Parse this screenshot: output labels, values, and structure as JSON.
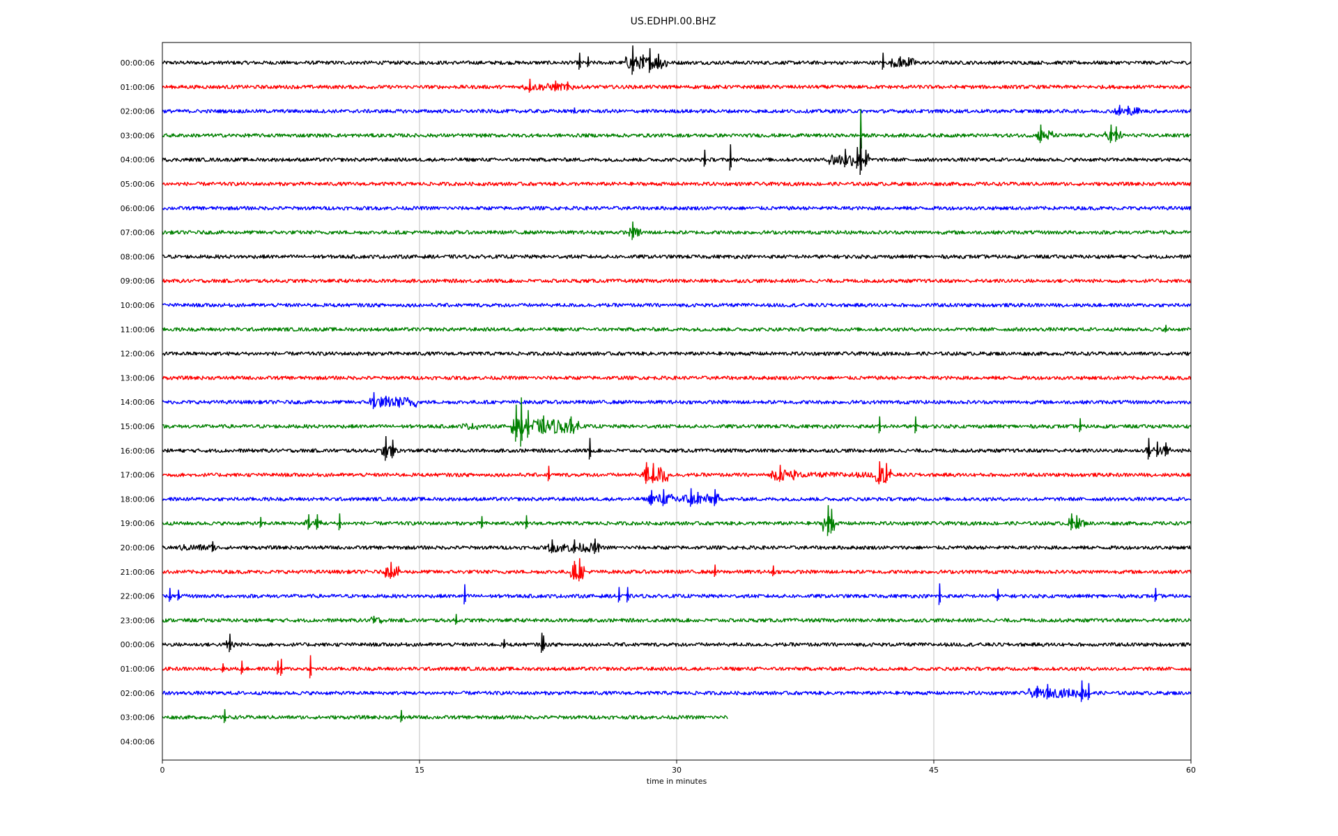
{
  "chart_data": {
    "type": "line",
    "title": "US.EDHPI.00.BHZ",
    "xlabel": "time in minutes",
    "ylabel": "",
    "xlim": [
      0,
      60
    ],
    "x_ticks": [
      0,
      15,
      30,
      45,
      60
    ],
    "x_tick_labels": [
      "0",
      "15",
      "30",
      "45",
      "60"
    ],
    "grid": "vertical lines at x ticks",
    "color_cycle": [
      "#000000",
      "#ff0000",
      "#0000ff",
      "#008000"
    ],
    "row_labels": [
      "00:00:06",
      "01:00:06",
      "02:00:06",
      "03:00:06",
      "04:00:06",
      "05:00:06",
      "06:00:06",
      "07:00:06",
      "08:00:06",
      "09:00:06",
      "10:00:06",
      "11:00:06",
      "12:00:06",
      "13:00:06",
      "14:00:06",
      "15:00:06",
      "16:00:06",
      "17:00:06",
      "18:00:06",
      "19:00:06",
      "20:00:06",
      "21:00:06",
      "22:00:06",
      "23:00:06",
      "00:00:06",
      "01:00:06",
      "02:00:06",
      "03:00:06",
      "04:00:06"
    ],
    "series": [
      {
        "row": 0,
        "color": "#000000",
        "end": 60,
        "spikes": [
          [
            24.3,
            0.55
          ],
          [
            24.8,
            0.35
          ],
          [
            27.4,
            0.95
          ],
          [
            28.0,
            0.45
          ],
          [
            28.4,
            0.8
          ],
          [
            28.9,
            0.5
          ],
          [
            42.0,
            0.55
          ],
          [
            43.0,
            0.35
          ],
          [
            43.5,
            0.3
          ]
        ],
        "bursts": [
          [
            27.0,
            29.5,
            0.35
          ],
          [
            42.5,
            44.0,
            0.25
          ]
        ]
      },
      {
        "row": 1,
        "color": "#ff0000",
        "end": 60,
        "spikes": [
          [
            21.4,
            0.45
          ],
          [
            22.9,
            0.35
          ],
          [
            23.6,
            0.3
          ]
        ],
        "bursts": [
          [
            21.0,
            24.0,
            0.2
          ]
        ]
      },
      {
        "row": 2,
        "color": "#0000ff",
        "end": 60,
        "spikes": [
          [
            24.0,
            0.2
          ],
          [
            55.8,
            0.35
          ],
          [
            56.3,
            0.3
          ]
        ],
        "bursts": [
          [
            55.5,
            57.0,
            0.22
          ]
        ]
      },
      {
        "row": 3,
        "color": "#008000",
        "end": 60,
        "spikes": [
          [
            40.7,
            1.45
          ],
          [
            51.2,
            0.6
          ],
          [
            55.3,
            0.6
          ],
          [
            55.6,
            0.5
          ]
        ],
        "bursts": [
          [
            51.0,
            52.0,
            0.3
          ],
          [
            55.0,
            56.0,
            0.25
          ]
        ]
      },
      {
        "row": 4,
        "color": "#000000",
        "end": 60,
        "spikes": [
          [
            31.6,
            0.55
          ],
          [
            33.1,
            0.85
          ],
          [
            39.8,
            0.6
          ],
          [
            40.5,
            0.7
          ],
          [
            40.7,
            1.2
          ],
          [
            41.0,
            0.55
          ]
        ],
        "bursts": [
          [
            38.8,
            41.3,
            0.35
          ]
        ]
      },
      {
        "row": 5,
        "color": "#ff0000",
        "end": 60,
        "spikes": [],
        "bursts": []
      },
      {
        "row": 6,
        "color": "#0000ff",
        "end": 60,
        "spikes": [],
        "bursts": []
      },
      {
        "row": 7,
        "color": "#008000",
        "end": 60,
        "spikes": [
          [
            27.4,
            0.6
          ]
        ],
        "bursts": [
          [
            27.2,
            28.0,
            0.25
          ]
        ]
      },
      {
        "row": 8,
        "color": "#000000",
        "end": 60,
        "spikes": [],
        "bursts": []
      },
      {
        "row": 9,
        "color": "#ff0000",
        "end": 60,
        "spikes": [],
        "bursts": []
      },
      {
        "row": 10,
        "color": "#0000ff",
        "end": 60,
        "spikes": [],
        "bursts": []
      },
      {
        "row": 11,
        "color": "#008000",
        "end": 60,
        "spikes": [
          [
            58.5,
            0.25
          ]
        ],
        "bursts": []
      },
      {
        "row": 12,
        "color": "#000000",
        "end": 60,
        "spikes": [],
        "bursts": []
      },
      {
        "row": 13,
        "color": "#ff0000",
        "end": 60,
        "spikes": [],
        "bursts": []
      },
      {
        "row": 14,
        "color": "#0000ff",
        "end": 60,
        "spikes": [
          [
            12.3,
            0.55
          ],
          [
            13.0,
            0.35
          ]
        ],
        "bursts": [
          [
            12.0,
            14.8,
            0.3
          ]
        ]
      },
      {
        "row": 15,
        "color": "#008000",
        "end": 60,
        "spikes": [
          [
            20.6,
            1.2
          ],
          [
            20.9,
            1.6
          ],
          [
            21.3,
            0.9
          ],
          [
            22.2,
            0.6
          ],
          [
            23.8,
            0.55
          ],
          [
            41.8,
            0.55
          ],
          [
            43.9,
            0.55
          ],
          [
            53.5,
            0.45
          ]
        ],
        "bursts": [
          [
            20.3,
            24.3,
            0.4
          ],
          [
            17.5,
            18.5,
            0.18
          ]
        ]
      },
      {
        "row": 16,
        "color": "#000000",
        "end": 60,
        "spikes": [
          [
            13.0,
            0.8
          ],
          [
            13.4,
            0.6
          ],
          [
            24.9,
            0.7
          ],
          [
            57.5,
            0.7
          ],
          [
            58.0,
            0.5
          ],
          [
            58.5,
            0.45
          ]
        ],
        "bursts": [
          [
            12.8,
            13.8,
            0.3
          ],
          [
            57.3,
            58.8,
            0.25
          ]
        ]
      },
      {
        "row": 17,
        "color": "#ff0000",
        "end": 60,
        "spikes": [
          [
            22.5,
            0.5
          ],
          [
            28.2,
            0.7
          ],
          [
            28.6,
            0.65
          ],
          [
            36.0,
            0.55
          ],
          [
            41.8,
            0.75
          ],
          [
            42.2,
            0.65
          ]
        ],
        "bursts": [
          [
            28.0,
            29.5,
            0.45
          ],
          [
            35.5,
            37.0,
            0.3
          ],
          [
            41.5,
            42.5,
            0.45
          ],
          [
            37.0,
            41.5,
            0.15
          ]
        ]
      },
      {
        "row": 18,
        "color": "#0000ff",
        "end": 60,
        "spikes": [
          [
            28.5,
            0.5
          ],
          [
            29.2,
            0.55
          ],
          [
            30.8,
            0.6
          ],
          [
            31.2,
            0.4
          ],
          [
            32.2,
            0.55
          ]
        ],
        "bursts": [
          [
            28.3,
            32.5,
            0.28
          ]
        ]
      },
      {
        "row": 19,
        "color": "#008000",
        "end": 60,
        "spikes": [
          [
            5.7,
            0.35
          ],
          [
            8.5,
            0.5
          ],
          [
            9.0,
            0.5
          ],
          [
            10.3,
            0.55
          ],
          [
            18.6,
            0.4
          ],
          [
            21.2,
            0.45
          ],
          [
            38.8,
            1.0
          ],
          [
            39.0,
            0.8
          ],
          [
            53.0,
            0.55
          ],
          [
            53.3,
            0.45
          ]
        ],
        "bursts": [
          [
            8.3,
            9.3,
            0.25
          ],
          [
            38.5,
            39.2,
            0.45
          ],
          [
            52.8,
            53.8,
            0.28
          ]
        ]
      },
      {
        "row": 20,
        "color": "#000000",
        "end": 60,
        "spikes": [
          [
            2.9,
            0.35
          ],
          [
            22.7,
            0.45
          ],
          [
            24.0,
            0.45
          ],
          [
            25.2,
            0.5
          ]
        ],
        "bursts": [
          [
            1.0,
            3.2,
            0.18
          ],
          [
            22.5,
            25.5,
            0.25
          ]
        ]
      },
      {
        "row": 21,
        "color": "#ff0000",
        "end": 60,
        "spikes": [
          [
            13.3,
            0.55
          ],
          [
            24.0,
            0.6
          ],
          [
            24.3,
            0.75
          ],
          [
            32.2,
            0.4
          ],
          [
            35.6,
            0.35
          ]
        ],
        "bursts": [
          [
            13.0,
            13.8,
            0.3
          ],
          [
            23.8,
            24.6,
            0.4
          ]
        ]
      },
      {
        "row": 22,
        "color": "#0000ff",
        "end": 60,
        "spikes": [
          [
            0.4,
            0.45
          ],
          [
            0.9,
            0.35
          ],
          [
            17.6,
            0.65
          ],
          [
            26.6,
            0.5
          ],
          [
            27.1,
            0.5
          ],
          [
            45.3,
            0.7
          ],
          [
            48.7,
            0.4
          ],
          [
            57.9,
            0.45
          ]
        ],
        "bursts": []
      },
      {
        "row": 23,
        "color": "#008000",
        "end": 60,
        "spikes": [
          [
            12.3,
            0.25
          ],
          [
            17.1,
            0.35
          ]
        ],
        "bursts": [
          [
            12.0,
            12.8,
            0.18
          ]
        ]
      },
      {
        "row": 24,
        "color": "#000000",
        "end": 60,
        "spikes": [
          [
            3.9,
            0.6
          ],
          [
            19.9,
            0.3
          ],
          [
            22.1,
            0.65
          ],
          [
            22.2,
            0.5
          ]
        ],
        "bursts": [
          [
            3.7,
            4.3,
            0.25
          ]
        ]
      },
      {
        "row": 25,
        "color": "#ff0000",
        "end": 60,
        "spikes": [
          [
            3.5,
            0.3
          ],
          [
            4.6,
            0.45
          ],
          [
            6.7,
            0.45
          ],
          [
            6.9,
            0.55
          ],
          [
            8.6,
            0.75
          ]
        ],
        "bursts": []
      },
      {
        "row": 26,
        "color": "#0000ff",
        "end": 60,
        "spikes": [
          [
            51.0,
            0.4
          ],
          [
            51.6,
            0.5
          ],
          [
            53.6,
            0.7
          ],
          [
            54.0,
            0.55
          ]
        ],
        "bursts": [
          [
            50.5,
            54.2,
            0.25
          ]
        ]
      },
      {
        "row": 27,
        "color": "#008000",
        "end": 33.0,
        "spikes": [
          [
            3.6,
            0.45
          ],
          [
            13.9,
            0.4
          ]
        ],
        "bursts": []
      }
    ]
  }
}
